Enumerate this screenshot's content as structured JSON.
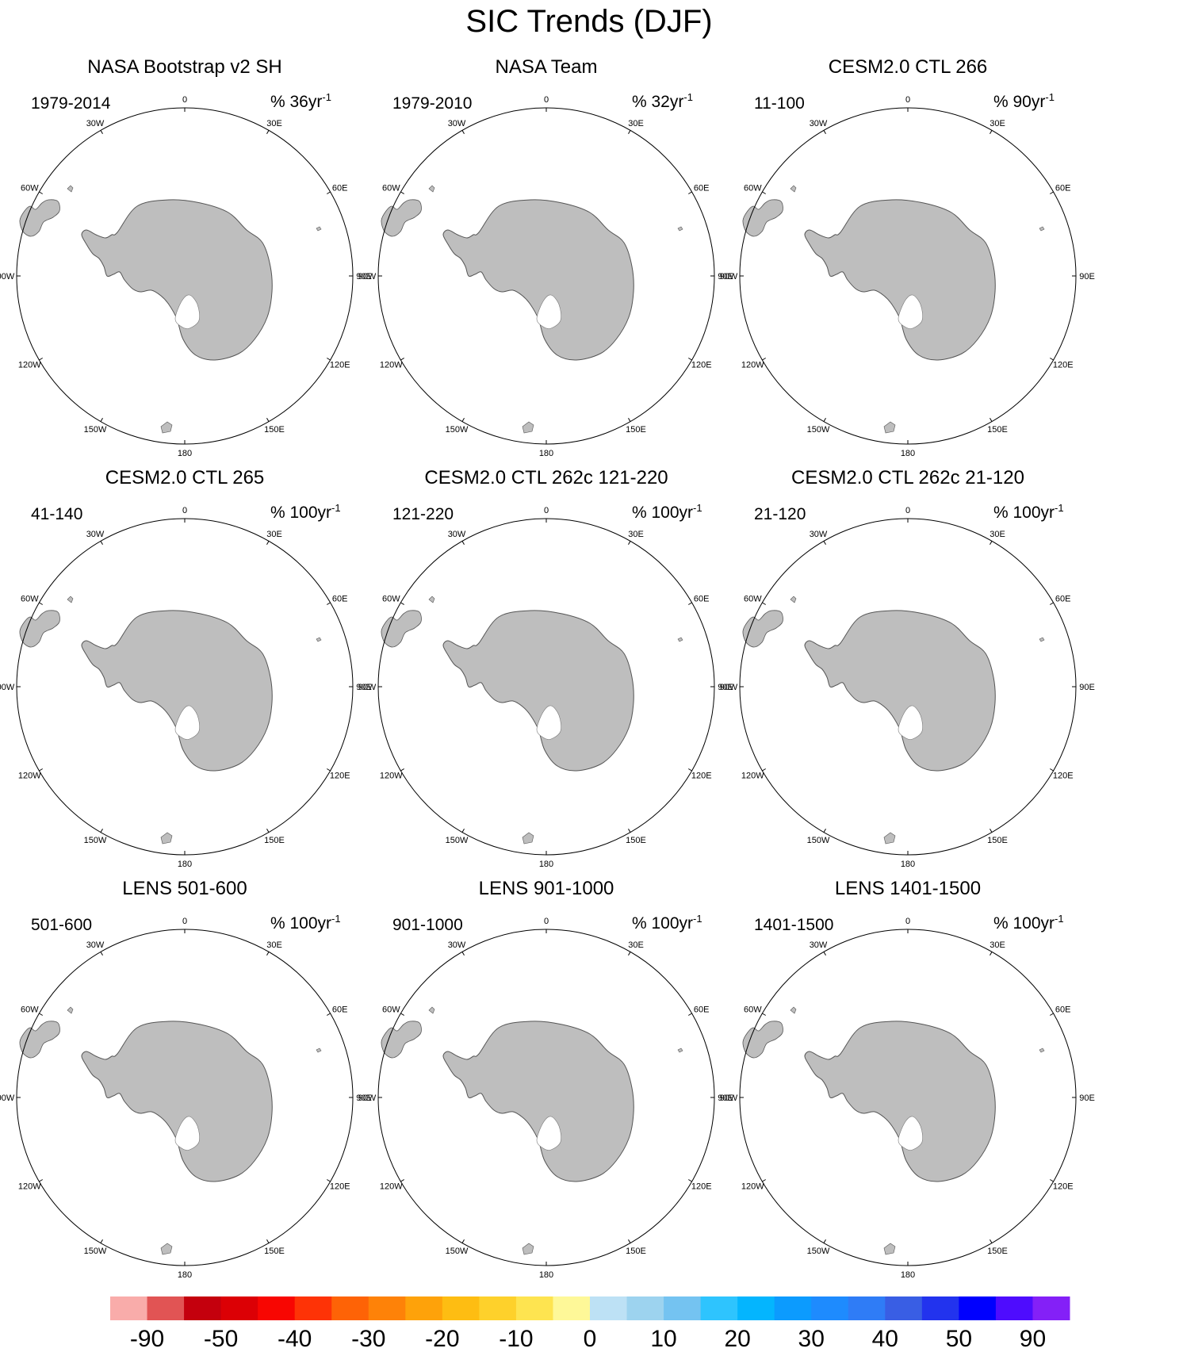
{
  "chart_data": {
    "type": "polar-map-panels",
    "title": "SIC Trends (DJF)",
    "units_label": "%",
    "longitude_ticks": [
      "0",
      "30E",
      "60E",
      "90E",
      "120E",
      "150E",
      "180",
      "150W",
      "120W",
      "90W",
      "60W",
      "30W"
    ],
    "panels": [
      {
        "title": "NASA Bootstrap v2 SH",
        "period": "1979-2014",
        "rate": "% 36yr",
        "rate_exp": "-1",
        "pattern": "obs_bootstrap"
      },
      {
        "title": "NASA Team",
        "period": "1979-2010",
        "rate": "% 32yr",
        "rate_exp": "-1",
        "pattern": "obs_team"
      },
      {
        "title": "CESM2.0 CTL 266",
        "period": "11-100",
        "rate": "% 90yr",
        "rate_exp": "-1",
        "pattern": "model_a"
      },
      {
        "title": "CESM2.0 CTL 265",
        "period": "41-140",
        "rate": "% 100yr",
        "rate_exp": "-1",
        "pattern": "model_b"
      },
      {
        "title": "CESM2.0 CTL 262c 121-220",
        "period": "121-220",
        "rate": "% 100yr",
        "rate_exp": "-1",
        "pattern": "model_c"
      },
      {
        "title": "CESM2.0 CTL 262c 21-120",
        "period": "21-120",
        "rate": "% 100yr",
        "rate_exp": "-1",
        "pattern": "model_d"
      },
      {
        "title": "LENS 501-600",
        "period": "501-600",
        "rate": "% 100yr",
        "rate_exp": "-1",
        "pattern": "lens_a"
      },
      {
        "title": "LENS 901-1000",
        "period": "901-1000",
        "rate": "% 100yr",
        "rate_exp": "-1",
        "pattern": "lens_b"
      },
      {
        "title": "LENS 1401-1500",
        "period": "1401-1500",
        "rate": "% 100yr",
        "rate_exp": "-1",
        "pattern": "lens_c"
      }
    ],
    "colorbar": {
      "colors": [
        "#f9acaa",
        "#e15454",
        "#c4000d",
        "#dc0005",
        "#f80602",
        "#fe3306",
        "#fe6306",
        "#fe8208",
        "#fea20a",
        "#febd12",
        "#fed12b",
        "#fee450",
        "#fef898",
        "#bde1f5",
        "#9dd3ef",
        "#74c3f1",
        "#2ec4fe",
        "#04b5fe",
        "#0c9bfe",
        "#1e8bfe",
        "#2f7cf6",
        "#395ee4",
        "#2233ee",
        "#0000fe",
        "#4e0cfe",
        "#8420f7"
      ],
      "labels": [
        "-90",
        "-50",
        "-40",
        "-30",
        "-20",
        "-10",
        "0",
        "10",
        "20",
        "30",
        "40",
        "50",
        "90"
      ]
    },
    "land_color": "#bebebe",
    "no_data_color": "#ffffff"
  }
}
